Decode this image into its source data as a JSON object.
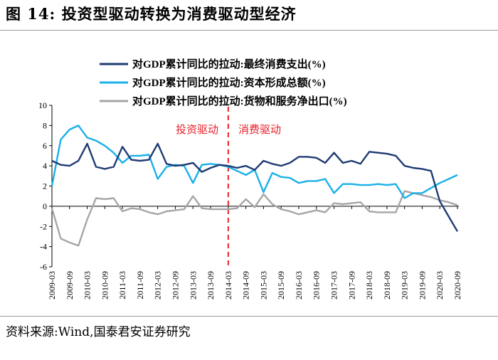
{
  "figure": {
    "title": "图 14:  投资型驱动转换为消费驱动型经济",
    "source": "资料来源:Wind,国泰君安证券研究"
  },
  "chart_data": {
    "type": "line",
    "xlabel": "",
    "ylabel": "",
    "ylim": [
      -6,
      10
    ],
    "yticks": [
      -6,
      -4,
      -2,
      0,
      2,
      4,
      6,
      8,
      10
    ],
    "grid": false,
    "legend_position": "top",
    "xtick_labels": [
      "2009-03",
      "2009-09",
      "2010-03",
      "2010-09",
      "2011-03",
      "2011-09",
      "2012-03",
      "2012-09",
      "2013-03",
      "2013-09",
      "2014-03",
      "2014-09",
      "2015-03",
      "2015-09",
      "2016-03",
      "2016-09",
      "2017-03",
      "2017-09",
      "2018-03",
      "2018-09",
      "2019-03",
      "2019-09",
      "2020-03",
      "2020-09"
    ],
    "divider": {
      "x": "2014-03",
      "color": "#e8202a"
    },
    "annotations": [
      {
        "text": "投资驱动",
        "color": "#e8202a"
      },
      {
        "text": "消费驱动",
        "color": "#e8202a"
      }
    ],
    "x": [
      "2009-03",
      "2009-06",
      "2009-09",
      "2009-12",
      "2010-03",
      "2010-06",
      "2010-09",
      "2010-12",
      "2011-03",
      "2011-06",
      "2011-09",
      "2011-12",
      "2012-03",
      "2012-06",
      "2012-09",
      "2012-12",
      "2013-03",
      "2013-06",
      "2013-09",
      "2013-12",
      "2014-03",
      "2014-06",
      "2014-09",
      "2014-12",
      "2015-03",
      "2015-06",
      "2015-09",
      "2015-12",
      "2016-03",
      "2016-06",
      "2016-09",
      "2016-12",
      "2017-03",
      "2017-06",
      "2017-09",
      "2017-12",
      "2018-03",
      "2018-06",
      "2018-09",
      "2018-12",
      "2019-03",
      "2019-06",
      "2019-09",
      "2019-12",
      "2020-03",
      "2020-06",
      "2020-09"
    ],
    "series": [
      {
        "name": "对GDP累计同比的拉动:最终消费支出(%)",
        "color": "#1f3b73",
        "values": [
          4.5,
          4.1,
          4.0,
          4.5,
          6.2,
          3.9,
          3.7,
          3.9,
          5.9,
          4.6,
          4.5,
          4.6,
          6.2,
          4.2,
          4.0,
          4.1,
          4.3,
          3.4,
          3.8,
          4.1,
          4.0,
          3.8,
          4.0,
          3.6,
          4.5,
          4.2,
          4.0,
          4.3,
          4.9,
          4.9,
          4.8,
          4.3,
          5.3,
          4.3,
          4.5,
          4.2,
          5.4,
          5.3,
          5.2,
          5.0,
          4.0,
          3.8,
          3.7,
          3.5,
          0.5,
          -1.0,
          -2.5
        ]
      },
      {
        "name": "对GDP累计同比的拉动:资本形成总额(%)",
        "color": "#1ab0e8",
        "values": [
          2.0,
          6.6,
          7.6,
          8.0,
          6.8,
          6.5,
          6.0,
          5.3,
          4.3,
          5.0,
          5.0,
          5.1,
          2.7,
          3.9,
          4.1,
          4.0,
          2.3,
          4.1,
          4.2,
          4.1,
          3.9,
          3.5,
          3.1,
          3.6,
          1.4,
          3.3,
          2.9,
          2.8,
          2.3,
          2.5,
          2.5,
          2.7,
          1.3,
          2.2,
          2.2,
          2.1,
          2.1,
          2.2,
          2.1,
          2.2,
          0.8,
          1.3,
          1.3,
          1.8,
          2.3,
          2.7,
          3.1
        ]
      },
      {
        "name": "对GDP累计同比的拉动:货物和服务净出口(%)",
        "color": "#a6a6a6",
        "values": [
          -0.2,
          -3.2,
          -3.6,
          -3.9,
          -1.3,
          0.8,
          0.7,
          0.8,
          -0.5,
          -0.2,
          -0.3,
          -0.6,
          -0.8,
          -0.5,
          -0.4,
          -0.3,
          1.0,
          -0.2,
          -0.3,
          -0.3,
          -0.3,
          -0.2,
          0.7,
          -0.1,
          1.2,
          0.2,
          -0.3,
          -0.5,
          -0.8,
          -0.6,
          -0.4,
          -0.6,
          0.3,
          0.2,
          0.3,
          0.4,
          -0.5,
          -0.6,
          -0.6,
          -0.6,
          1.5,
          1.3,
          1.1,
          0.9,
          0.6,
          0.4,
          0.1
        ]
      }
    ]
  }
}
